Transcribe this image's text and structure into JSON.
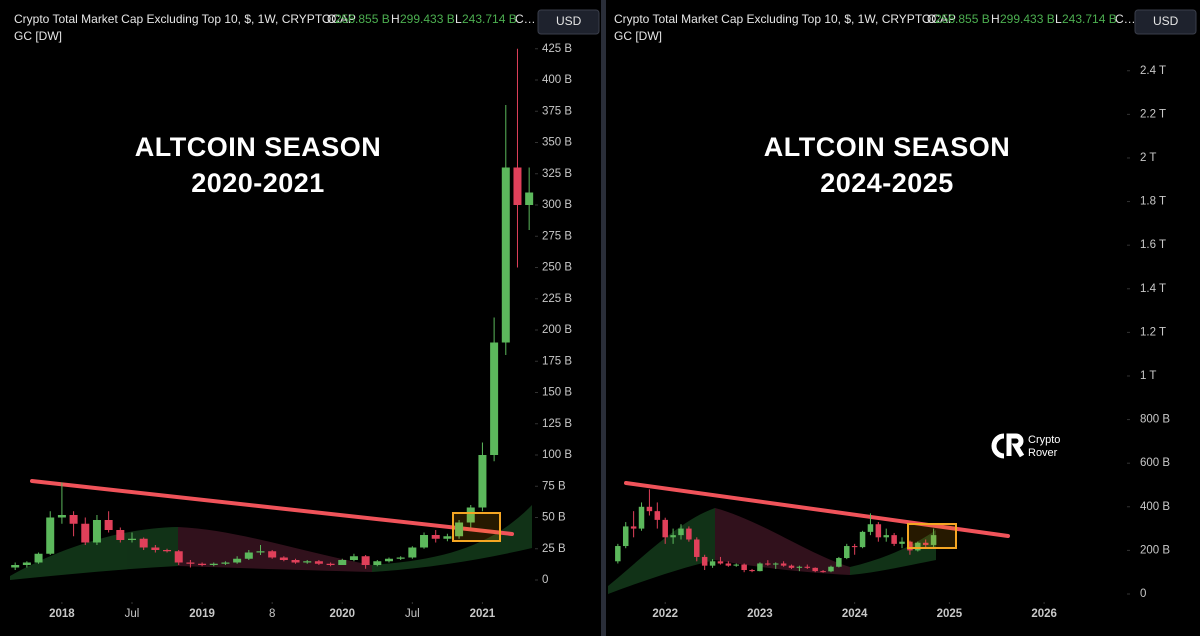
{
  "header": {
    "title": "Crypto Total Market Cap Excluding Top 10, $, 1W, CRYPTOCAP",
    "open_label": "O",
    "open": "256.855 B",
    "high_label": "H",
    "high": "299.433 B",
    "low_label": "L",
    "low": "243.714 B",
    "close_label": "C…",
    "indicator": "GC [DW]",
    "currency": "USD"
  },
  "watermark": {
    "line1": "Crypto",
    "line2": "Rover"
  },
  "chart_data": [
    {
      "type": "candlestick",
      "annotation": [
        "ALTCOIN SEASON",
        "2020-2021"
      ],
      "up_color": "#5cb85c",
      "down_color": "#e0405a",
      "xlim": [
        -1.3,
        44.5
      ],
      "xticks": [
        {
          "value": 4,
          "label": "2018"
        },
        {
          "value": 10,
          "label": "Jul"
        },
        {
          "value": 16,
          "label": "2019"
        },
        {
          "value": 22,
          "label": "8"
        },
        {
          "value": 28,
          "label": "2020"
        },
        {
          "value": 34,
          "label": "Jul"
        },
        {
          "value": 40,
          "label": "2021"
        }
      ],
      "ylim": [
        0,
        436
      ],
      "yticks": [
        0,
        {
          "value": 25,
          "label": "25 B"
        },
        {
          "value": 50,
          "label": "50 B"
        },
        {
          "value": 75,
          "label": "75 B"
        },
        {
          "value": 100,
          "label": "100 B"
        },
        {
          "value": 125,
          "label": "125 B"
        },
        {
          "value": 150,
          "label": "150 B"
        },
        {
          "value": 175,
          "label": "175 B"
        },
        {
          "value": 200,
          "label": "200 B"
        },
        {
          "value": 225,
          "label": "225 B"
        },
        {
          "value": 250,
          "label": "250 B"
        },
        {
          "value": 275,
          "label": "275 B"
        },
        {
          "value": 300,
          "label": "300 B"
        },
        {
          "value": 325,
          "label": "325 B"
        },
        {
          "value": 350,
          "label": "350 B"
        },
        {
          "value": 375,
          "label": "375 B"
        },
        {
          "value": 400,
          "label": "400 B"
        },
        {
          "value": 425,
          "label": "425 B"
        }
      ],
      "open": [
        10,
        12,
        14,
        21,
        50,
        52,
        45,
        30,
        48,
        40,
        32,
        33,
        26,
        24,
        23,
        14,
        13,
        12,
        13,
        14,
        17,
        22,
        23,
        18,
        16,
        14,
        15,
        13,
        12,
        16,
        19,
        12,
        15,
        17,
        18,
        26,
        36,
        33,
        35,
        46,
        58,
        100,
        190,
        330,
        300
      ],
      "high": [
        14,
        15,
        22,
        55,
        78,
        55,
        50,
        52,
        55,
        42,
        38,
        34,
        28,
        25,
        24,
        16,
        14,
        14,
        15,
        19,
        24,
        28,
        24,
        19,
        17,
        16,
        16,
        14,
        17,
        21,
        20,
        16,
        18,
        19,
        27,
        38,
        40,
        37,
        48,
        60,
        110,
        210,
        380,
        425,
        330
      ],
      "low": [
        8,
        10,
        13,
        20,
        45,
        35,
        28,
        28,
        38,
        30,
        30,
        24,
        22,
        22,
        12,
        10,
        11,
        11,
        12,
        13,
        16,
        20,
        17,
        15,
        13,
        13,
        12,
        11,
        12,
        15,
        9,
        11,
        14,
        16,
        17,
        25,
        30,
        31,
        33,
        42,
        55,
        95,
        180,
        250,
        280
      ],
      "close": [
        12,
        14,
        21,
        50,
        52,
        45,
        30,
        48,
        40,
        32,
        33,
        26,
        24,
        23,
        14,
        13,
        12,
        13,
        14,
        17,
        22,
        23,
        18,
        16,
        14,
        15,
        13,
        12,
        16,
        19,
        12,
        15,
        17,
        18,
        26,
        36,
        33,
        35,
        46,
        58,
        100,
        190,
        330,
        300,
        310
      ]
    },
    {
      "type": "candlestick",
      "annotation": [
        "ALTCOIN SEASON",
        "2024-2025"
      ],
      "up_color": "#5cb85c",
      "down_color": "#e0405a",
      "xlim": [
        -1.5,
        64.5
      ],
      "xticks": [
        {
          "value": 6,
          "label": "2022"
        },
        {
          "value": 18,
          "label": "2023"
        },
        {
          "value": 30,
          "label": "2024"
        },
        {
          "value": 42,
          "label": "2025"
        },
        {
          "value": 54,
          "label": "2026"
        }
      ],
      "ylim": [
        0,
        2564
      ],
      "yticks": [
        0,
        {
          "value": 200,
          "label": "200 B"
        },
        {
          "value": 400,
          "label": "400 B"
        },
        {
          "value": 600,
          "label": "600 B"
        },
        {
          "value": 800,
          "label": "800 B"
        },
        {
          "value": 1000,
          "label": "1 T"
        },
        {
          "value": 1200,
          "label": "1.2 T"
        },
        {
          "value": 1400,
          "label": "1.4 T"
        },
        {
          "value": 1600,
          "label": "1.6 T"
        },
        {
          "value": 1800,
          "label": "1.8 T"
        },
        {
          "value": 2000,
          "label": "2 T"
        },
        {
          "value": 2200,
          "label": "2.2 T"
        },
        {
          "value": 2400,
          "label": "2.4 T"
        }
      ],
      "open": [
        150,
        220,
        310,
        300,
        400,
        380,
        340,
        260,
        270,
        300,
        250,
        170,
        130,
        150,
        140,
        130,
        135,
        110,
        105,
        140,
        135,
        140,
        130,
        120,
        125,
        120,
        105,
        104,
        125,
        165,
        220,
        215,
        285,
        320,
        260,
        270,
        230,
        240,
        200,
        235,
        225
      ],
      "high": [
        230,
        330,
        380,
        420,
        480,
        420,
        350,
        300,
        320,
        310,
        260,
        180,
        160,
        170,
        150,
        140,
        140,
        115,
        145,
        155,
        145,
        150,
        135,
        130,
        135,
        122,
        110,
        130,
        170,
        230,
        230,
        290,
        370,
        330,
        300,
        280,
        260,
        245,
        240,
        250,
        300
      ],
      "low": [
        140,
        210,
        260,
        290,
        360,
        300,
        230,
        230,
        250,
        240,
        150,
        110,
        120,
        135,
        125,
        125,
        100,
        100,
        104,
        130,
        115,
        125,
        115,
        105,
        115,
        100,
        98,
        100,
        122,
        160,
        180,
        210,
        270,
        240,
        240,
        220,
        210,
        180,
        195,
        215,
        215
      ],
      "close": [
        220,
        310,
        300,
        400,
        380,
        340,
        260,
        270,
        300,
        250,
        170,
        130,
        150,
        140,
        130,
        135,
        110,
        105,
        140,
        135,
        140,
        130,
        120,
        125,
        120,
        105,
        104,
        125,
        165,
        220,
        215,
        285,
        320,
        260,
        270,
        230,
        240,
        200,
        235,
        225,
        270
      ]
    }
  ]
}
